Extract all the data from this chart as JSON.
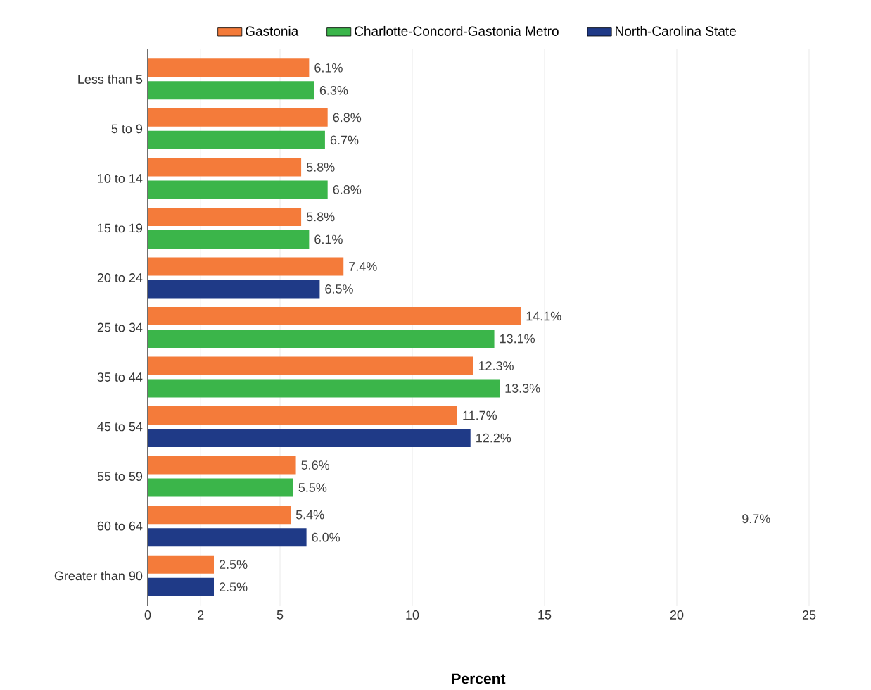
{
  "chart_data": {
    "type": "bar",
    "orientation": "horizontal",
    "xlabel": "Percent",
    "legend": "top",
    "grid": "x",
    "categories": [
      "Less than 5",
      "5 to 9",
      "10 to 14",
      "15 to 19",
      "20 to 24",
      "25 to 34",
      "35 to 44",
      "45 to 54",
      "55 to 59",
      "60 to 64",
      "Greater than 90"
    ],
    "xlim": [
      0,
      25
    ],
    "xticks": [
      0,
      2,
      5,
      10,
      15,
      20,
      25
    ],
    "series": [
      {
        "name": "Gastonia",
        "color": "#f47b3a",
        "values": [
          6.1,
          6.8,
          5.8,
          5.8,
          7.4,
          14.1,
          12.3,
          11.7,
          5.6,
          5.4,
          2.5
        ],
        "value_labels": [
          "6.1%",
          "6.8%",
          "5.8%",
          "5.8%",
          "7.4%",
          "14.1%",
          "12.3%",
          "11.7%",
          "5.6%",
          "5.4%",
          "2.5%"
        ]
      },
      {
        "name": "Charlotte-Concord-Gastonia Metro",
        "color": "#3bb54a",
        "values": [
          6.3,
          6.7,
          6.8,
          6.1,
          null,
          13.1,
          13.3,
          null,
          5.5,
          null,
          null
        ],
        "value_labels": [
          "6.3%",
          "6.7%",
          "6.8%",
          "6.1%",
          null,
          "13.1%",
          "13.3%",
          null,
          "5.5%",
          null,
          null
        ]
      },
      {
        "name": "North-Carolina State",
        "color": "#1f3a87",
        "values": [
          null,
          null,
          null,
          null,
          6.5,
          null,
          null,
          12.2,
          null,
          6.0,
          2.5
        ],
        "value_labels": [
          null,
          null,
          null,
          null,
          "6.5%",
          null,
          null,
          "12.2%",
          null,
          "6.0%",
          "2.5%"
        ]
      }
    ],
    "annotations": [
      "9.7%"
    ]
  }
}
